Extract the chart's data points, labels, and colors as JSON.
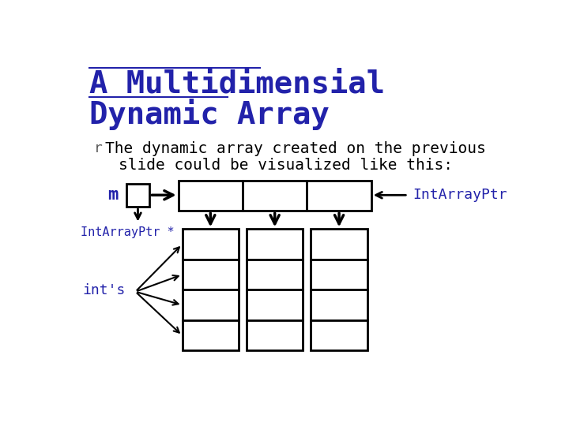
{
  "title_line1": "A Multidimensial",
  "title_line2": "Dynamic Array",
  "title_color": "#2222AA",
  "title_fontsize": 28,
  "bullet_text_line1": "The dynamic array created on the previous",
  "bullet_text_line2": "slide could be visualized like this:",
  "text_color": "#000000",
  "label_m": "m",
  "label_intarrayptr_left": "IntArrayPtr *",
  "label_intarrayptr_right": "IntArrayPtr",
  "label_ints": "int's",
  "label_color": "#2222AA",
  "bg_color": "#ffffff",
  "box_color": "#000000",
  "arrow_color": "#000000",
  "bullet_marker": "r"
}
